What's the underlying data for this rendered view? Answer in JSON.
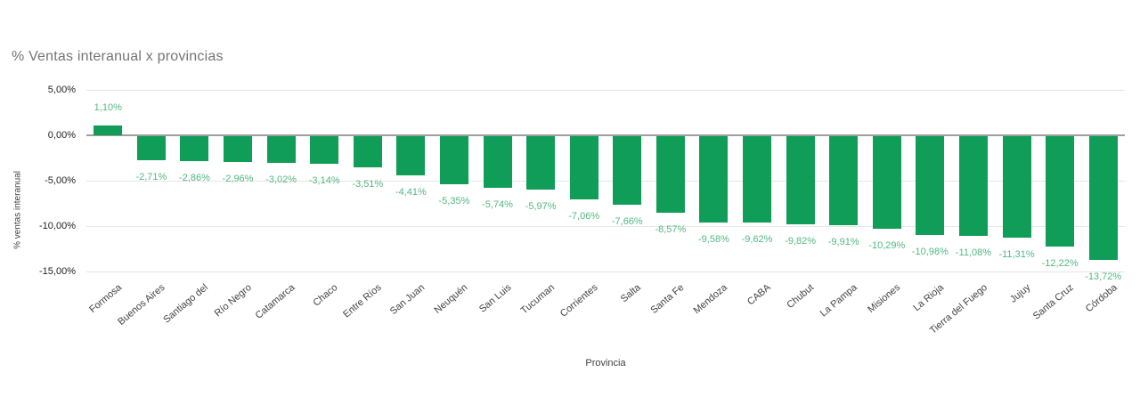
{
  "chart_data": {
    "type": "bar",
    "title": "% Ventas interanual x provincias",
    "xlabel": "Provincia",
    "ylabel": "% ventas interanual",
    "categories": [
      "Formosa",
      "Buenos Aires",
      "Santiago del",
      "Río Negro",
      "Catamarca",
      "Chaco",
      "Entre Ríos",
      "San Juan",
      "Neuquén",
      "San Luis",
      "Tucuman",
      "Corrientes",
      "Salta",
      "Santa Fe",
      "Mendoza",
      "CABA",
      "Chubut",
      "La Pampa",
      "Misiones",
      "La Rioja",
      "Tierra del Fuego",
      "Jujuy",
      "Santa Cruz",
      "Córdoba"
    ],
    "values": [
      1.1,
      -2.71,
      -2.86,
      -2.96,
      -3.02,
      -3.14,
      -3.51,
      -4.41,
      -5.35,
      -5.74,
      -5.97,
      -7.06,
      -7.66,
      -8.57,
      -9.58,
      -9.62,
      -9.82,
      -9.91,
      -10.29,
      -10.98,
      -11.08,
      -11.31,
      -12.22,
      -13.72
    ],
    "value_labels": [
      "1,10%",
      "-2,71%",
      "-2,86%",
      "-2,96%",
      "-3,02%",
      "-3,14%",
      "-3,51%",
      "-4,41%",
      "-5,35%",
      "-5,74%",
      "-5,97%",
      "-7,06%",
      "-7,66%",
      "-8,57%",
      "-9,58%",
      "-9,62%",
      "-9,82%",
      "-9,91%",
      "-10,29%",
      "-10,98%",
      "-11,08%",
      "-11,31%",
      "-12,22%",
      "-13,72%"
    ],
    "ylim": [
      -15,
      5
    ],
    "yticks": [
      5,
      0,
      -5,
      -10,
      -15
    ],
    "ytick_labels": [
      "5,00%",
      "0,00%",
      "-5,00%",
      "-10,00%",
      "-15,00%"
    ],
    "grid": true,
    "legend_position": "none",
    "colors": {
      "bar": "#0f9d58",
      "value_label": "#53b880",
      "title": "#757575",
      "axis_text": "#424242",
      "tick_text": "#222222",
      "gridline": "#e6e6e6",
      "zero_line": "#9e9e9e",
      "background": "#ffffff"
    }
  }
}
